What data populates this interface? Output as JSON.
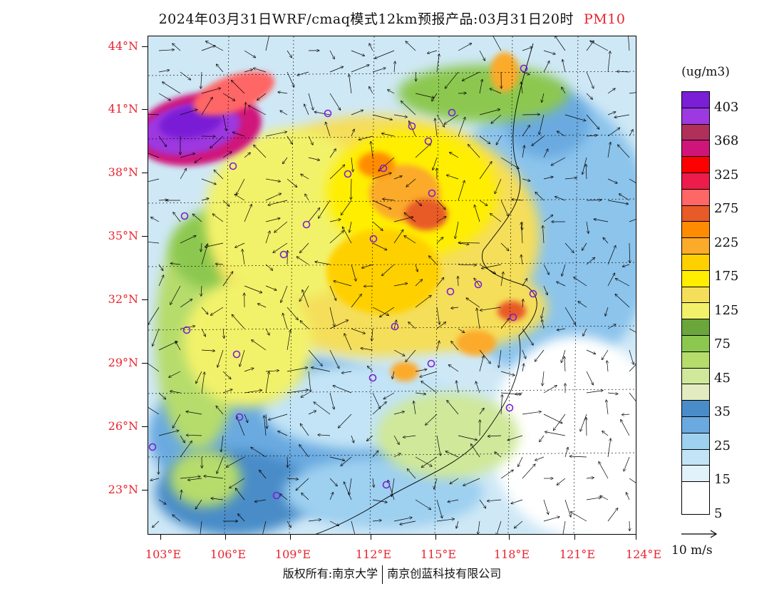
{
  "title": {
    "main": "2024年03月31日WRF/cmaq模式12km预报产品:03月31日20时",
    "pollutant": "PM10"
  },
  "axes": {
    "lat_labels": [
      "44°N",
      "41°N",
      "38°N",
      "35°N",
      "32°N",
      "29°N",
      "26°N",
      "23°N"
    ],
    "lon_labels": [
      "103°E",
      "106°E",
      "109°E",
      "112°E",
      "115°E",
      "118°E",
      "121°E",
      "124°E"
    ]
  },
  "legend": {
    "unit": "(ug/m3)",
    "labels": [
      "403",
      "368",
      "325",
      "275",
      "225",
      "175",
      "125",
      "75",
      "45",
      "35",
      "25",
      "15",
      "5"
    ],
    "colors": [
      "#7a1fd6",
      "#9d39e0",
      "#b0305a",
      "#d0157a",
      "#ff0000",
      "#ee1c4a",
      "#ff6666",
      "#e85a28",
      "#ff8c00",
      "#fbaa2a",
      "#ffd000",
      "#ffee00",
      "#f5de5a",
      "#f2f26a",
      "#6aa63a",
      "#8cc850",
      "#b6dc6c",
      "#cfe89a",
      "#e2ecc0",
      "#4a8cc8",
      "#6aaae0",
      "#9ed0f0",
      "#c2e4f6",
      "#e2f2fb",
      "#ffffff"
    ]
  },
  "wind_scale": {
    "label": "10 m/s"
  },
  "copyright": {
    "left": "版权所有:南京大学",
    "right": "南京创蓝科技有限公司"
  },
  "map": {
    "accent_high": "#9d39e0",
    "accent_mid": "#ffd000",
    "accent_low": "#6aaae0",
    "marker_color": "#7a1fd6"
  }
}
